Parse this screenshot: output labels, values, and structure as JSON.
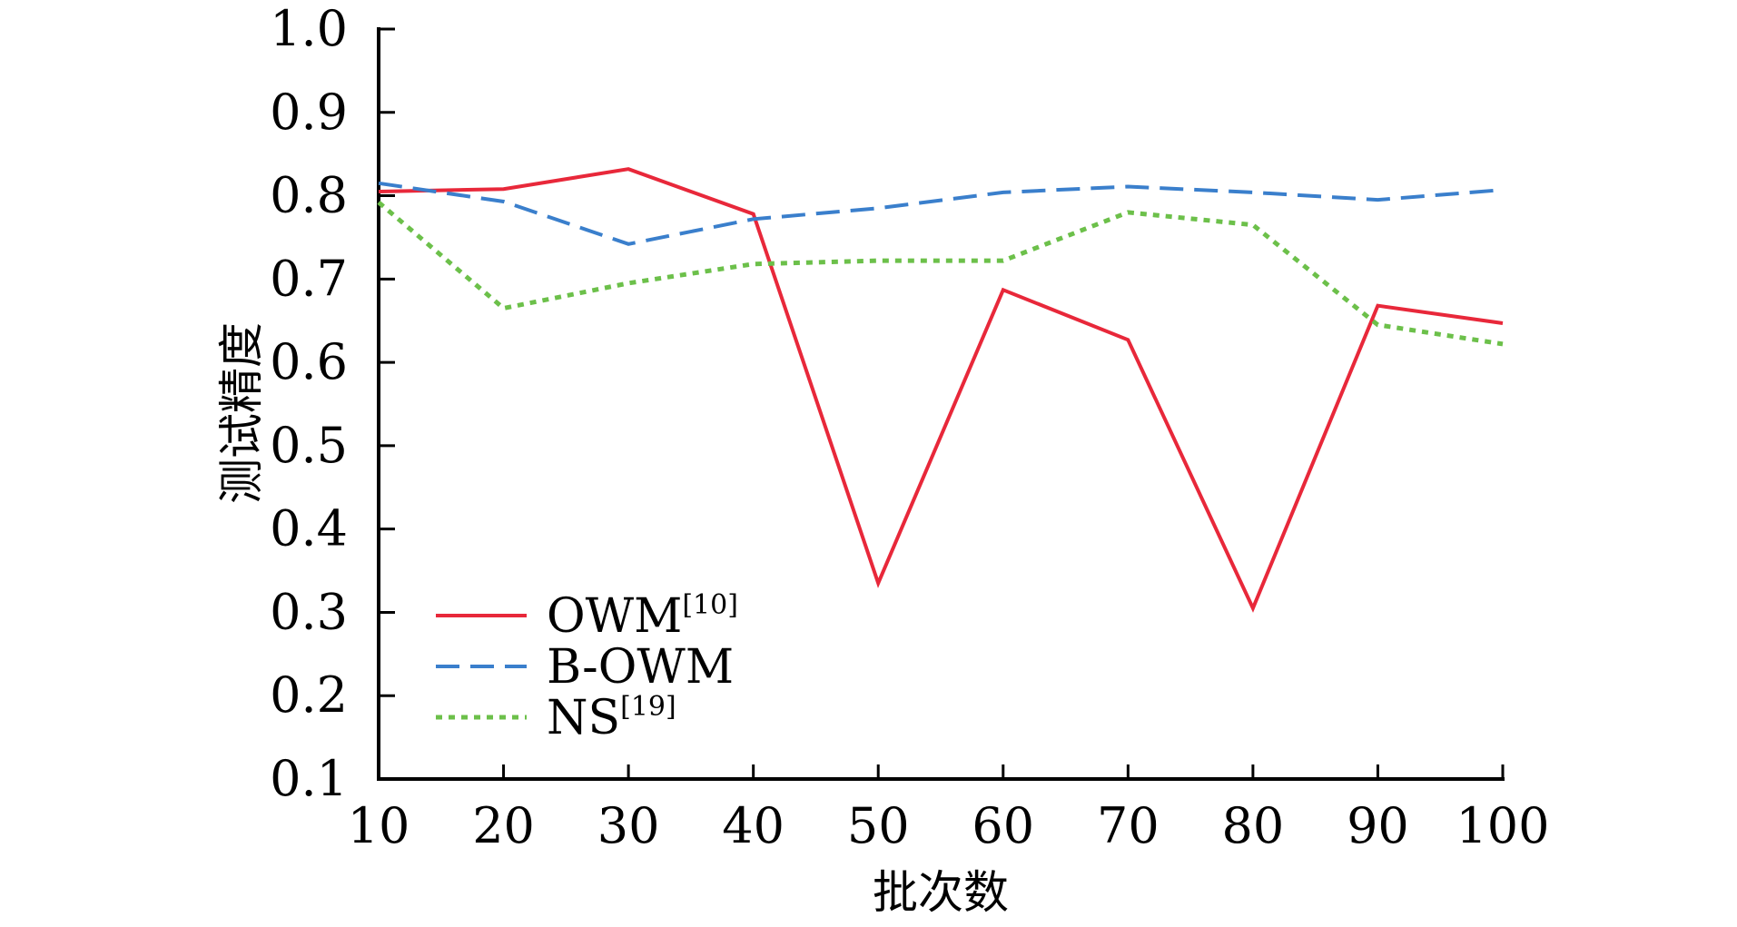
{
  "chart_data": {
    "type": "line",
    "x": [
      10,
      20,
      30,
      40,
      50,
      60,
      70,
      80,
      90,
      100
    ],
    "xticks": [
      "10",
      "20",
      "30",
      "40",
      "50",
      "60",
      "70",
      "80",
      "90",
      "100"
    ],
    "yticks": [
      "0.1",
      "0.2",
      "0.3",
      "0.4",
      "0.5",
      "0.6",
      "0.7",
      "0.8",
      "0.9",
      "1.0"
    ],
    "xlim": [
      10,
      100
    ],
    "ylim": [
      0.1,
      1.0
    ],
    "xlabel": "批次数",
    "ylabel": "测试精度",
    "grid": false,
    "legend_position": "bottom-left",
    "series": [
      {
        "name": "OWM",
        "name_sup": "[10]",
        "color": "#e8283a",
        "style": "solid",
        "values": [
          0.805,
          0.808,
          0.832,
          0.778,
          0.335,
          0.687,
          0.627,
          0.305,
          0.668,
          0.647
        ]
      },
      {
        "name": "B-OWM",
        "name_sup": "",
        "color": "#3a7fcc",
        "style": "dashed",
        "values": [
          0.815,
          0.793,
          0.742,
          0.772,
          0.785,
          0.804,
          0.811,
          0.804,
          0.795,
          0.807
        ]
      },
      {
        "name": "NS",
        "name_sup": "[19]",
        "color": "#6cc04a",
        "style": "dotted",
        "values": [
          0.792,
          0.665,
          0.695,
          0.718,
          0.722,
          0.722,
          0.78,
          0.765,
          0.645,
          0.622
        ]
      }
    ]
  }
}
